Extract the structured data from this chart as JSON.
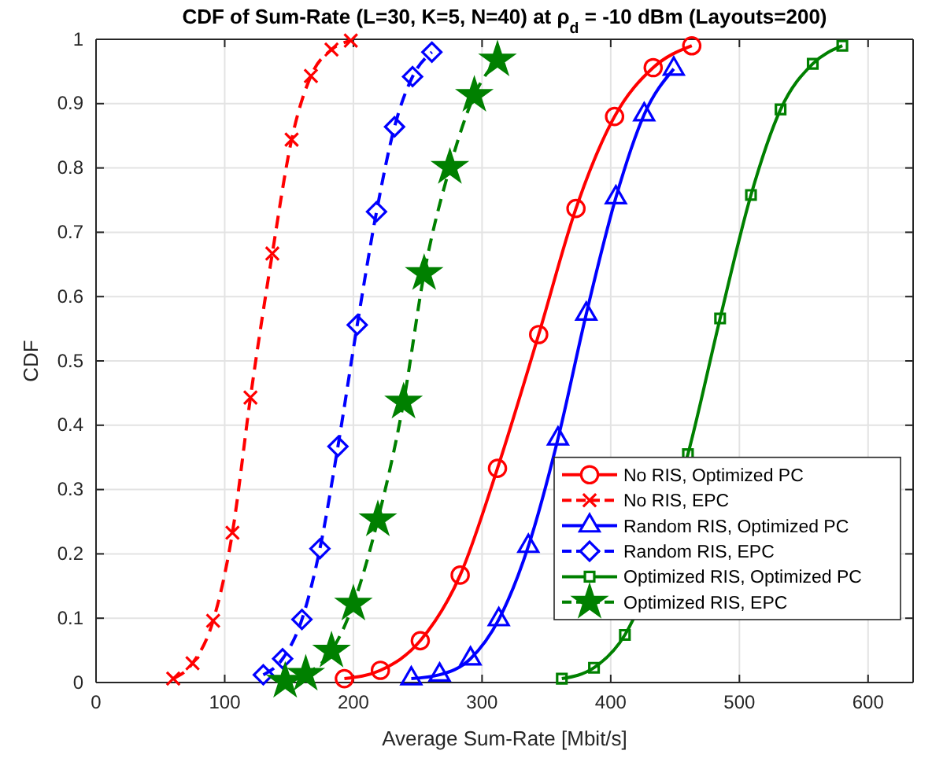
{
  "chart_data": {
    "type": "line",
    "title": "CDF of Sum-Rate (L=30, K=5, N=40) at ρ$_{d}$ = -10 dBm (Layouts=200)",
    "xlabel": "Average Sum-Rate [Mbit/s]",
    "ylabel": "CDF",
    "xlim": [
      0,
      635
    ],
    "ylim": [
      0,
      1
    ],
    "xticks": [
      0,
      100,
      200,
      300,
      400,
      500,
      600
    ],
    "yticks": [
      0,
      0.1,
      0.2,
      0.3,
      0.4,
      0.5,
      0.6,
      0.7,
      0.8,
      0.9,
      1
    ],
    "grid": true,
    "legend": "bottom right",
    "series": [
      {
        "name": "No RIS, Optimized PC",
        "color": "#ff0000",
        "marker": "circle",
        "line_style": "solid",
        "x": [
          193,
          221,
          252,
          283,
          312,
          344,
          373,
          403,
          433,
          463
        ],
        "values": [
          0.006,
          0.019,
          0.065,
          0.167,
          0.333,
          0.541,
          0.737,
          0.88,
          0.956,
          0.99
        ]
      },
      {
        "name": "No RIS, EPC",
        "color": "#ff0000",
        "marker": "cross",
        "line_style": "dashed",
        "x": [
          60,
          75,
          91,
          106,
          120,
          137,
          152,
          167,
          183,
          198
        ],
        "values": [
          0.006,
          0.03,
          0.096,
          0.233,
          0.443,
          0.667,
          0.844,
          0.943,
          0.984,
          0.998
        ]
      },
      {
        "name": "Random RIS, Optimized PC",
        "color": "#0000ff",
        "marker": "triangle",
        "line_style": "solid",
        "x": [
          245,
          267,
          291,
          313,
          336,
          359,
          381,
          404,
          426,
          449
        ],
        "values": [
          0.006,
          0.012,
          0.037,
          0.098,
          0.212,
          0.379,
          0.573,
          0.754,
          0.883,
          0.954
        ]
      },
      {
        "name": "Random RIS, EPC",
        "color": "#0000ff",
        "marker": "diamond",
        "line_style": "dashed",
        "x": [
          130,
          145,
          160,
          174,
          188,
          203,
          218,
          232,
          246,
          261
        ],
        "values": [
          0.012,
          0.037,
          0.098,
          0.208,
          0.367,
          0.556,
          0.732,
          0.864,
          0.942,
          0.98
        ]
      },
      {
        "name": "Optimized RIS, Optimized PC",
        "color": "#008000",
        "marker": "square",
        "line_style": "solid",
        "x": [
          362,
          387,
          411,
          460,
          485,
          509,
          532,
          557,
          580
        ],
        "values": [
          0.006,
          0.023,
          0.074,
          0.355,
          0.566,
          0.758,
          0.891,
          0.962,
          0.99
        ]
      },
      {
        "name": "Optimized RIS, EPC",
        "color": "#008000",
        "marker": "star",
        "line_style": "dashed",
        "x": [
          147,
          163,
          183,
          200,
          219,
          239,
          255,
          275,
          294,
          312
        ],
        "values": [
          0.002,
          0.013,
          0.049,
          0.122,
          0.253,
          0.436,
          0.636,
          0.801,
          0.913,
          0.968
        ]
      }
    ]
  }
}
